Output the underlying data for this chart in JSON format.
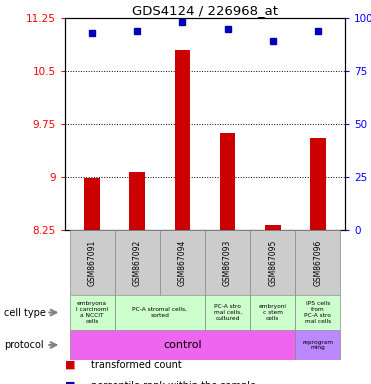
{
  "title": "GDS4124 / 226968_at",
  "samples": [
    "GSM867091",
    "GSM867092",
    "GSM867094",
    "GSM867093",
    "GSM867095",
    "GSM867096"
  ],
  "bar_values": [
    8.98,
    9.07,
    10.8,
    9.62,
    8.32,
    9.55
  ],
  "dot_values": [
    93,
    94,
    98,
    95,
    89,
    94
  ],
  "ylim_left": [
    8.25,
    11.25
  ],
  "ylim_right": [
    0,
    100
  ],
  "yticks_left": [
    8.25,
    9.0,
    9.75,
    10.5,
    11.25
  ],
  "yticks_right": [
    0,
    25,
    50,
    75,
    100
  ],
  "ytick_labels_left": [
    "8.25",
    "9",
    "9.75",
    "10.5",
    "11.25"
  ],
  "ytick_labels_right": [
    "0",
    "25",
    "50",
    "75",
    "100%"
  ],
  "hlines": [
    9.0,
    9.75,
    10.5
  ],
  "bar_color": "#cc0000",
  "dot_color": "#0000bb",
  "bar_bottom": 8.25,
  "cell_groups": [
    {
      "indices": [
        0
      ],
      "label": "embryona\nl carcinoml\na NCCIT\ncells"
    },
    {
      "indices": [
        1,
        2
      ],
      "label": "PC-A stromal cells,\nsorted"
    },
    {
      "indices": [
        3
      ],
      "label": "PC-A stro\nmal cells,\ncultured"
    },
    {
      "indices": [
        4
      ],
      "label": "embryoni\nc stem\ncells"
    },
    {
      "indices": [
        5
      ],
      "label": "IPS cells\nfrom\nPC-A stro\nmal cells"
    }
  ],
  "cell_bg_color": "#ccffcc",
  "sample_bg_color": "#cccccc",
  "protocol_control_color": "#ee66ee",
  "protocol_reprogram_color": "#bb88ff",
  "protocol_control_label": "control",
  "protocol_reprogram_label": "reprogram\nming"
}
